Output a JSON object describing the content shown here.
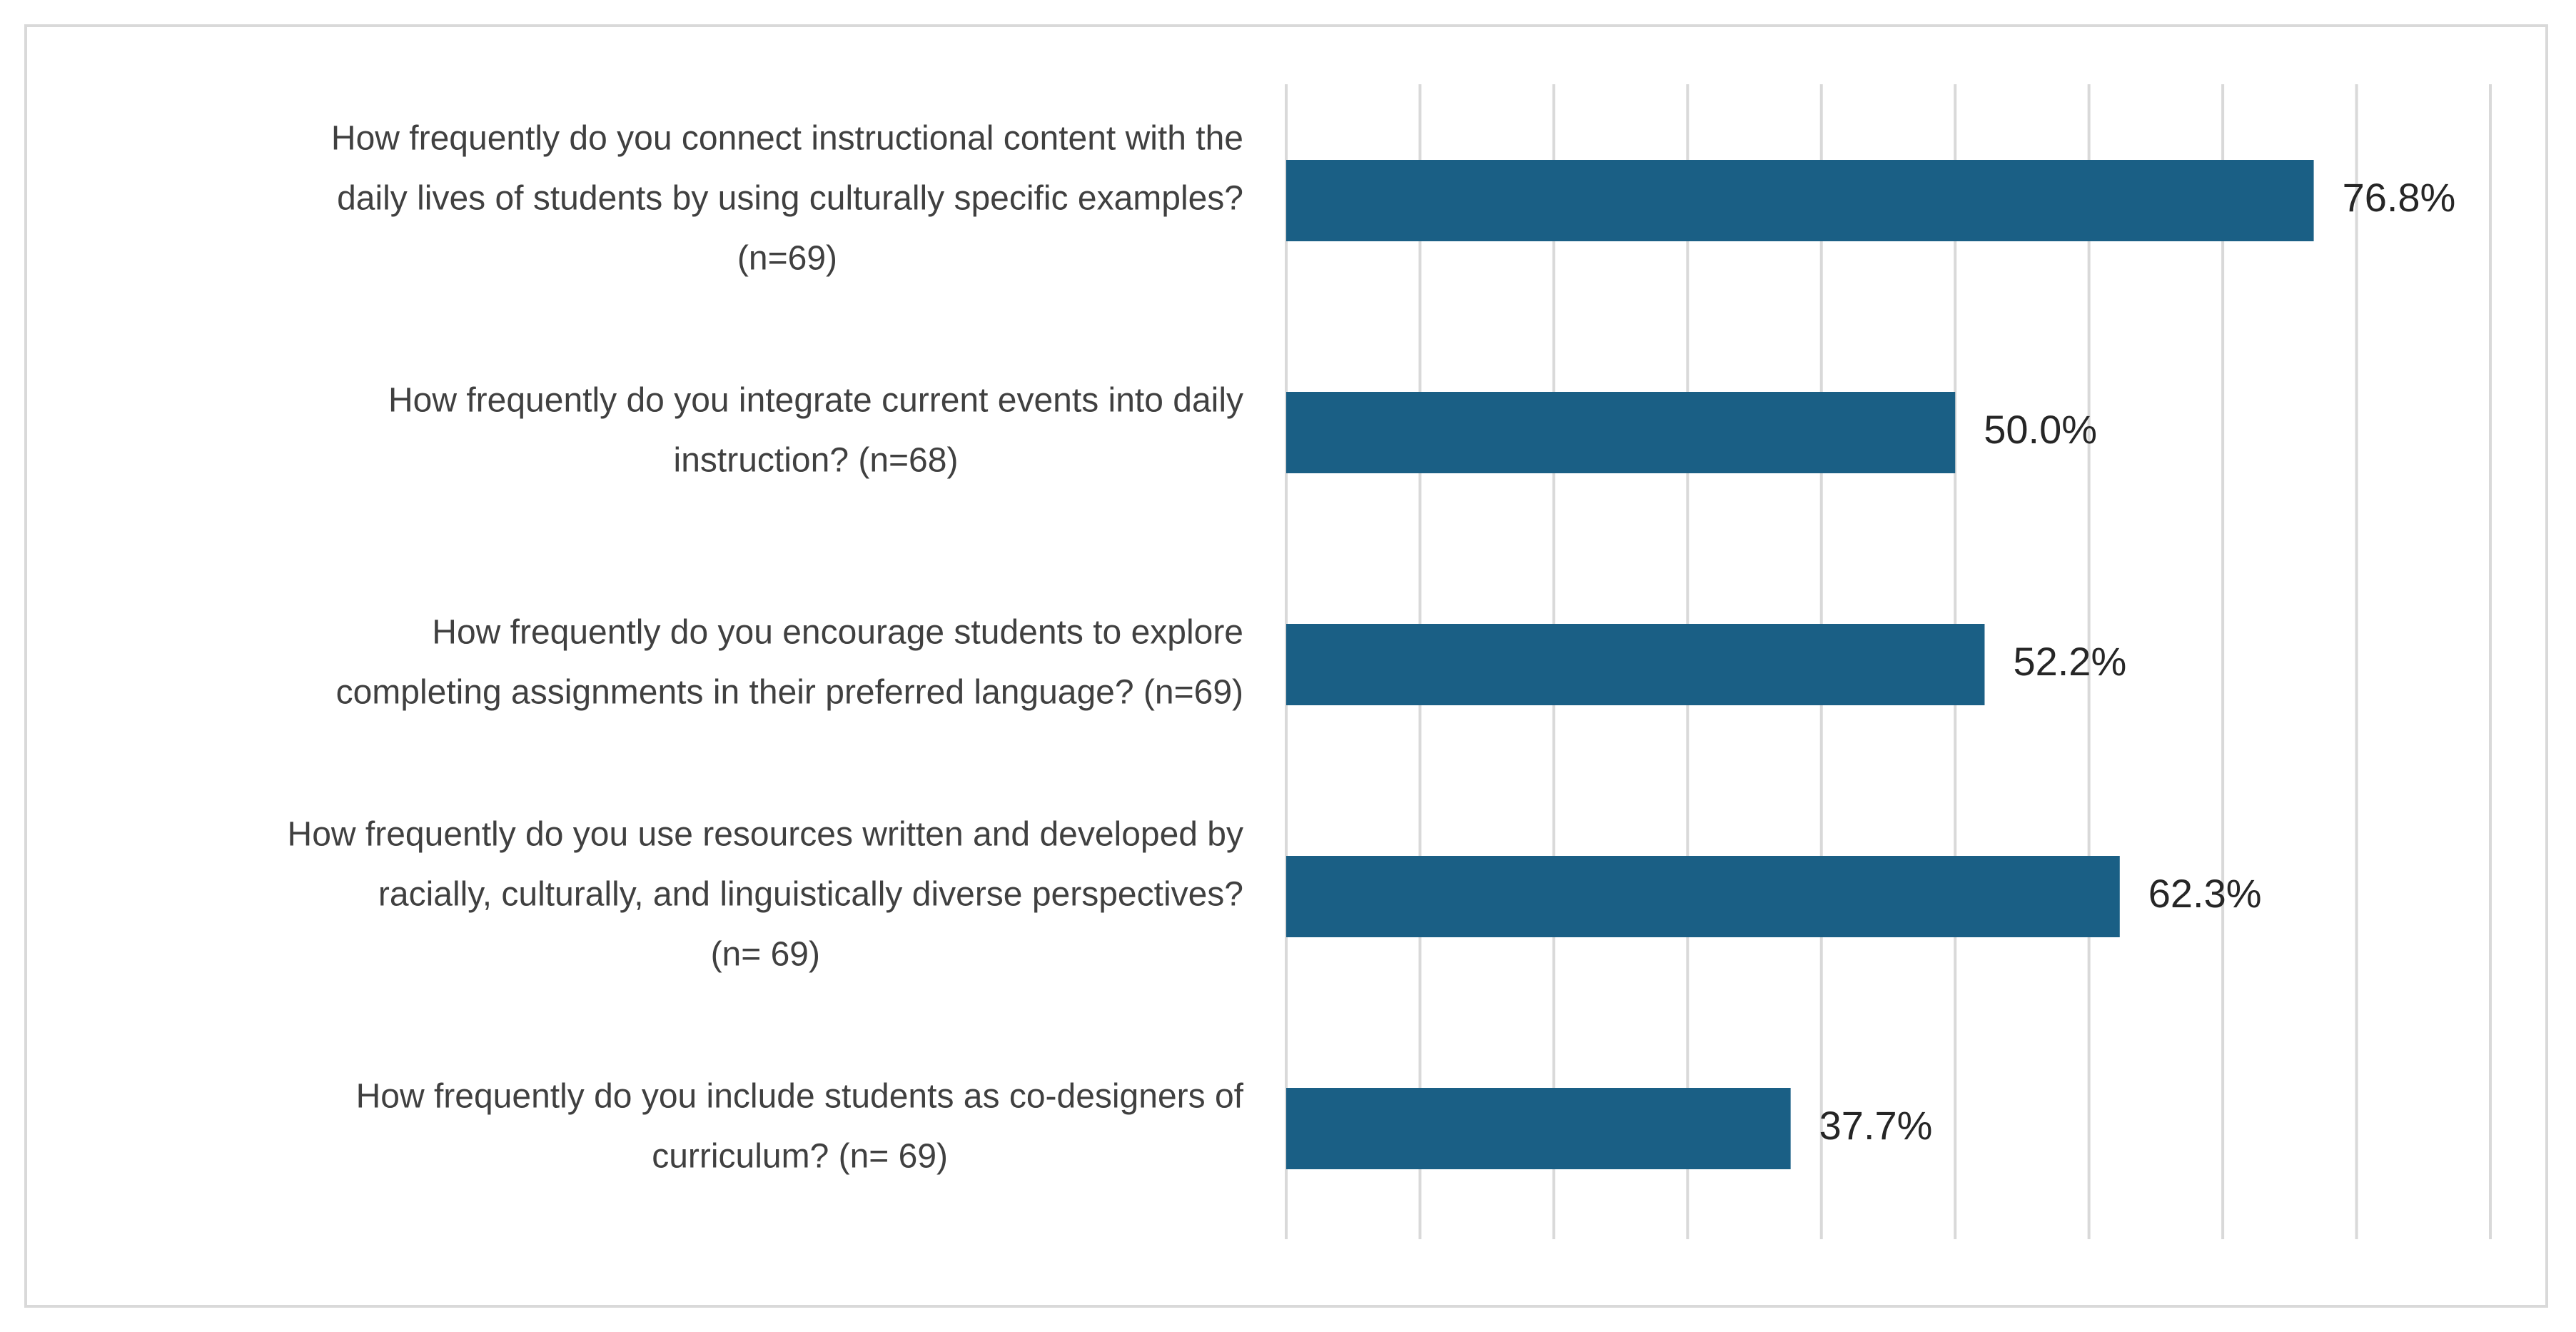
{
  "chart_data": {
    "type": "bar",
    "orientation": "horizontal",
    "title": "",
    "xlabel": "",
    "ylabel": "",
    "xlim": [
      0,
      90
    ],
    "grid": "vertical",
    "legend": "none",
    "bar_color": "#1a5f85",
    "gridline_color": "#d9d9d9",
    "categories": [
      {
        "lines": [
          "How frequently do you connect instructional content with the",
          "daily lives of students by using culturally specific  examples?",
          "(n=69)"
        ]
      },
      {
        "lines": [
          "How frequently do you integrate current events into daily",
          "instruction? (n=68)"
        ]
      },
      {
        "lines": [
          "How frequently do you encourage students to explore",
          "completing assignments in their preferred language? (n=69)"
        ]
      },
      {
        "lines": [
          "How frequently do you use resources written and developed by",
          "racially, culturally, and linguistically diverse perspectives?",
          "(n= 69)"
        ]
      },
      {
        "lines": [
          "How frequently do you include students as co-designers of",
          "curriculum? (n= 69)"
        ]
      }
    ],
    "values": [
      76.8,
      50.0,
      52.2,
      62.3,
      37.7
    ],
    "data_labels": [
      "76.8%",
      "50.0%",
      "52.2%",
      "62.3%",
      "37.7%"
    ]
  }
}
